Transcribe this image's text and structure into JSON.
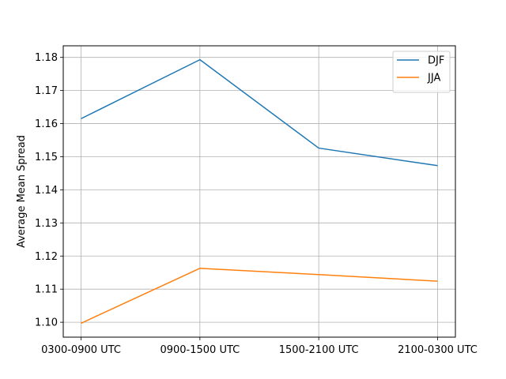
{
  "chart_data": {
    "type": "line",
    "title": "",
    "xlabel": "",
    "ylabel": "Average Mean Spread",
    "categories": [
      "0300-0900 UTC",
      "0900-1500 UTC",
      "1500-2100 UTC",
      "2100-0300 UTC"
    ],
    "y_ticks": [
      "1.10",
      "1.11",
      "1.12",
      "1.13",
      "1.14",
      "1.15",
      "1.16",
      "1.17",
      "1.18"
    ],
    "ylim": [
      1.0955,
      1.1835
    ],
    "grid": true,
    "legend_position": "top-right",
    "series": [
      {
        "name": "DJF",
        "color": "#1f77b4",
        "values": [
          1.1615,
          1.1793,
          1.1526,
          1.1473
        ]
      },
      {
        "name": "JJA",
        "color": "#ff7f0e",
        "values": [
          1.0997,
          1.1163,
          1.1144,
          1.1124
        ]
      }
    ]
  }
}
